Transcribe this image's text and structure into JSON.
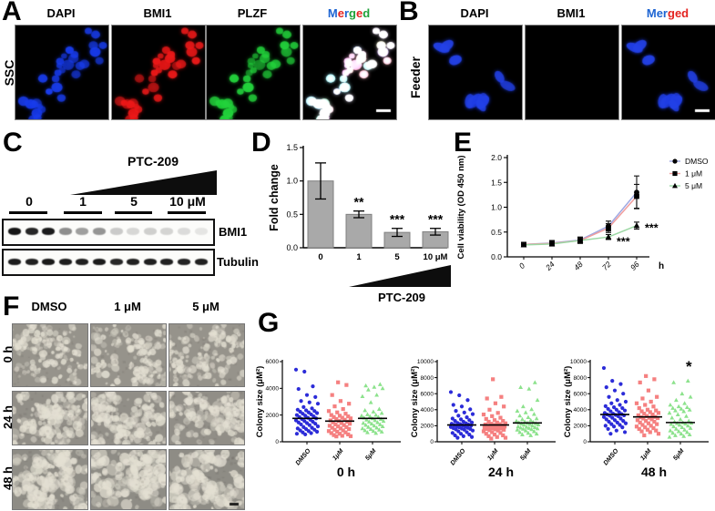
{
  "panels": {
    "A": {
      "letter": "A",
      "side_label": "SSC",
      "headers": [
        {
          "text": "DAPI",
          "color": "#1d64d2"
        },
        {
          "text": "BMI1",
          "color": "#e42320"
        },
        {
          "text": "PLZF",
          "color": "#1fa23a"
        },
        {
          "segments": [
            {
              "t": "M",
              "c": "#1d64d2"
            },
            {
              "t": "e",
              "c": "#e42320"
            },
            {
              "t": "r",
              "c": "#1d64d2"
            },
            {
              "t": "g",
              "c": "#1fa23a"
            },
            {
              "t": "e",
              "c": "#e42320"
            },
            {
              "t": "d",
              "c": "#1fa23a"
            }
          ]
        }
      ]
    },
    "B": {
      "letter": "B",
      "side_label": "Feeder",
      "headers": [
        {
          "text": "DAPI",
          "color": "#1d64d2"
        },
        {
          "text": "BMI1",
          "color": "#e42320"
        },
        {
          "segments": [
            {
              "t": "Mer",
              "c": "#1d64d2"
            },
            {
              "t": "ged",
              "c": "#e42320"
            }
          ]
        }
      ]
    },
    "C": {
      "letter": "C",
      "wedge_label": "PTC-209",
      "doses": [
        "0",
        "1",
        "5",
        "10 μM"
      ],
      "blots": [
        {
          "label": "BMI1",
          "intensities": [
            0.95,
            0.88,
            0.92,
            0.45,
            0.38,
            0.42,
            0.2,
            0.15,
            0.18,
            0.16,
            0.13,
            0.09
          ]
        },
        {
          "label": "Tubulin",
          "intensities": [
            0.92,
            0.9,
            0.93,
            0.91,
            0.9,
            0.92,
            0.88,
            0.9,
            0.91,
            0.9,
            0.89,
            0.9
          ]
        }
      ]
    },
    "D": {
      "letter": "D"
    },
    "E": {
      "letter": "E"
    },
    "F": {
      "letter": "F",
      "col_labels": [
        "DMSO",
        "1 μM",
        "5 μM"
      ],
      "row_labels": [
        "0 h",
        "24 h",
        "48 h"
      ]
    },
    "G": {
      "letter": "G"
    }
  },
  "chart_data": [
    {
      "type": "bar",
      "panel": "D",
      "categories": [
        "0",
        "1",
        "5",
        "10"
      ],
      "values": [
        1.0,
        0.5,
        0.23,
        0.24
      ],
      "errors": [
        0.27,
        0.05,
        0.06,
        0.05
      ],
      "sig": [
        "",
        "**",
        "***",
        "***"
      ],
      "ylabel": "Fold change",
      "ylim": [
        0,
        1.5
      ],
      "yticks": [
        "0.0",
        "0.5",
        "1.0",
        "1.5"
      ],
      "x_unit": "μM",
      "xlabel": "PTC-209",
      "bar_color": "#a9a9a9"
    },
    {
      "type": "line",
      "panel": "E",
      "x": [
        "0",
        "24",
        "48",
        "72",
        "96"
      ],
      "x_unit": "h",
      "ylabel": "Cell viability (OD 450 nm)",
      "ylim": [
        0,
        2.0
      ],
      "yticks": [
        "0.0",
        "0.5",
        "1.0",
        "1.5",
        "2.0"
      ],
      "legend_position": "right",
      "series": [
        {
          "name": "DMSO",
          "marker": "circle",
          "line_color": "#9fa8e2",
          "values": [
            0.25,
            0.28,
            0.34,
            0.62,
            1.3
          ],
          "errors": [
            0.04,
            0.05,
            0.06,
            0.1,
            0.33
          ]
        },
        {
          "name": "1 μM",
          "marker": "square",
          "line_color": "#f09e9e",
          "values": [
            0.25,
            0.27,
            0.33,
            0.58,
            1.22
          ],
          "errors": [
            0.04,
            0.05,
            0.06,
            0.09,
            0.24
          ]
        },
        {
          "name": "5 μM",
          "marker": "triangle",
          "line_color": "#9cd8a4",
          "values": [
            0.24,
            0.26,
            0.33,
            0.4,
            0.63
          ],
          "errors": [
            0.03,
            0.04,
            0.05,
            0.05,
            0.07
          ]
        }
      ],
      "annotations": [
        {
          "text": "***",
          "xi": 3,
          "y": 0.3
        },
        {
          "text": "***",
          "xi": 4,
          "y": 0.58
        }
      ]
    },
    {
      "type": "scatter",
      "panel": "G",
      "title": "0 h",
      "ylabel": "Colony size (μM²)",
      "ylim": [
        0,
        6000
      ],
      "yticks": [
        0,
        2000,
        4000,
        6000
      ],
      "groups": [
        {
          "label": "DMSO",
          "color": "#2c2cd8",
          "marker": "circle",
          "mean": 1750,
          "values": [
            5400,
            5250,
            4150,
            3950,
            3500,
            3350,
            3050,
            2950,
            2850,
            2600,
            2500,
            2400,
            2350,
            2300,
            2250,
            2200,
            2150,
            2100,
            2050,
            2000,
            1950,
            1900,
            1850,
            1800,
            1750,
            1700,
            1650,
            1600,
            1550,
            1500,
            1450,
            1400,
            1350,
            1300,
            1250,
            1150,
            1100,
            1050,
            1000,
            950,
            900,
            850,
            800,
            750,
            700,
            650,
            600,
            550
          ]
        },
        {
          "label": "1μM",
          "color": "#f58080",
          "marker": "square",
          "mean": 1550,
          "values": [
            4450,
            4250,
            3500,
            3050,
            2850,
            2650,
            2450,
            2300,
            2200,
            2100,
            2000,
            1950,
            1900,
            1850,
            1800,
            1750,
            1700,
            1650,
            1600,
            1550,
            1500,
            1450,
            1400,
            1350,
            1300,
            1250,
            1200,
            1150,
            1100,
            1050,
            1000,
            950,
            900,
            850,
            800,
            750,
            700,
            650,
            600,
            550,
            500,
            450,
            420,
            400
          ]
        },
        {
          "label": "5μM",
          "color": "#8ce28c",
          "marker": "triangle",
          "mean": 1750,
          "values": [
            4300,
            4200,
            4100,
            4000,
            3900,
            3500,
            3400,
            2950,
            2450,
            2350,
            2250,
            2150,
            2050,
            2000,
            1950,
            1900,
            1850,
            1800,
            1750,
            1700,
            1650,
            1600,
            1550,
            1500,
            1450,
            1400,
            1350,
            1300,
            1250,
            1200,
            1150,
            1100,
            1050,
            1000,
            950,
            900,
            850,
            800,
            750,
            700,
            650
          ]
        }
      ]
    },
    {
      "type": "scatter",
      "panel": "G",
      "title": "24 h",
      "ylabel": "Colony size (μM²)",
      "ylim": [
        0,
        10000
      ],
      "yticks": [
        0,
        2000,
        4000,
        6000,
        8000,
        10000
      ],
      "groups": [
        {
          "label": "DMSO",
          "color": "#2c2cd8",
          "marker": "circle",
          "mean": 2100,
          "values": [
            6200,
            5800,
            5200,
            4600,
            4400,
            4050,
            3850,
            3650,
            3450,
            3250,
            3050,
            2900,
            2800,
            2700,
            2600,
            2500,
            2400,
            2350,
            2300,
            2250,
            2200,
            2150,
            2100,
            2050,
            2000,
            1950,
            1900,
            1850,
            1800,
            1750,
            1700,
            1650,
            1600,
            1550,
            1500,
            1400,
            1300,
            1200,
            1100,
            1000,
            900,
            800,
            700,
            600,
            500
          ]
        },
        {
          "label": "1μM",
          "color": "#f58080",
          "marker": "square",
          "mean": 2100,
          "values": [
            7800,
            5600,
            5400,
            4800,
            4400,
            4000,
            3600,
            3400,
            3200,
            3000,
            2850,
            2700,
            2600,
            2500,
            2400,
            2300,
            2250,
            2200,
            2150,
            2100,
            2050,
            2000,
            1950,
            1900,
            1850,
            1800,
            1750,
            1700,
            1650,
            1600,
            1550,
            1500,
            1450,
            1400,
            1300,
            1200,
            1100,
            1000,
            900,
            800,
            700,
            600,
            500,
            400
          ]
        },
        {
          "label": "5μM",
          "color": "#8ce28c",
          "marker": "triangle",
          "mean": 2350,
          "values": [
            7400,
            6800,
            6600,
            5200,
            4400,
            4050,
            3850,
            3650,
            3450,
            3250,
            3050,
            2900,
            2800,
            2700,
            2600,
            2500,
            2450,
            2400,
            2350,
            2300,
            2250,
            2200,
            2150,
            2100,
            2000,
            1900,
            1850,
            1800,
            1750,
            1700,
            1650,
            1600,
            1550,
            1500,
            1400,
            1300,
            1200,
            1100,
            1000,
            900,
            800
          ]
        }
      ]
    },
    {
      "type": "scatter",
      "panel": "G",
      "title": "48 h",
      "ylabel": "Colony size (μM²)",
      "ylim": [
        0,
        10000
      ],
      "yticks": [
        0,
        2000,
        4000,
        6000,
        8000,
        10000
      ],
      "sig": {
        "group": 2,
        "text": "*"
      },
      "groups": [
        {
          "label": "DMSO",
          "color": "#2c2cd8",
          "marker": "circle",
          "mean": 3400,
          "values": [
            9200,
            7600,
            7200,
            6800,
            6400,
            6000,
            5600,
            5200,
            5000,
            4800,
            4600,
            4450,
            4300,
            4200,
            4100,
            4000,
            3900,
            3800,
            3700,
            3600,
            3500,
            3450,
            3400,
            3350,
            3300,
            3250,
            3200,
            3100,
            3000,
            2900,
            2800,
            2700,
            2600,
            2500,
            2400,
            2300,
            2200,
            2100,
            2000,
            1900,
            1800,
            1600,
            1400,
            1200,
            1000
          ]
        },
        {
          "label": "1μM",
          "color": "#f58080",
          "marker": "square",
          "mean": 3100,
          "values": [
            8200,
            7800,
            7400,
            6400,
            5600,
            5400,
            5000,
            4800,
            4600,
            4400,
            4200,
            4000,
            3900,
            3800,
            3700,
            3600,
            3500,
            3400,
            3300,
            3200,
            3100,
            3050,
            3000,
            2950,
            2900,
            2800,
            2700,
            2600,
            2500,
            2400,
            2300,
            2200,
            2100,
            2000,
            1900,
            1800,
            1700,
            1600,
            1500,
            1400,
            1300,
            1200,
            1000,
            800
          ]
        },
        {
          "label": "5μM",
          "color": "#8ce28c",
          "marker": "triangle",
          "mean": 2400,
          "values": [
            7600,
            7400,
            6000,
            5600,
            5200,
            4800,
            4600,
            4400,
            4300,
            4200,
            4100,
            4000,
            3900,
            3800,
            3600,
            3400,
            3200,
            3000,
            2800,
            2600,
            2500,
            2400,
            2350,
            2300,
            2250,
            2200,
            2100,
            2000,
            1900,
            1800,
            1700,
            1600,
            1500,
            1400,
            1300,
            1200,
            1100,
            1000,
            900,
            800,
            700,
            600
          ]
        }
      ]
    }
  ]
}
